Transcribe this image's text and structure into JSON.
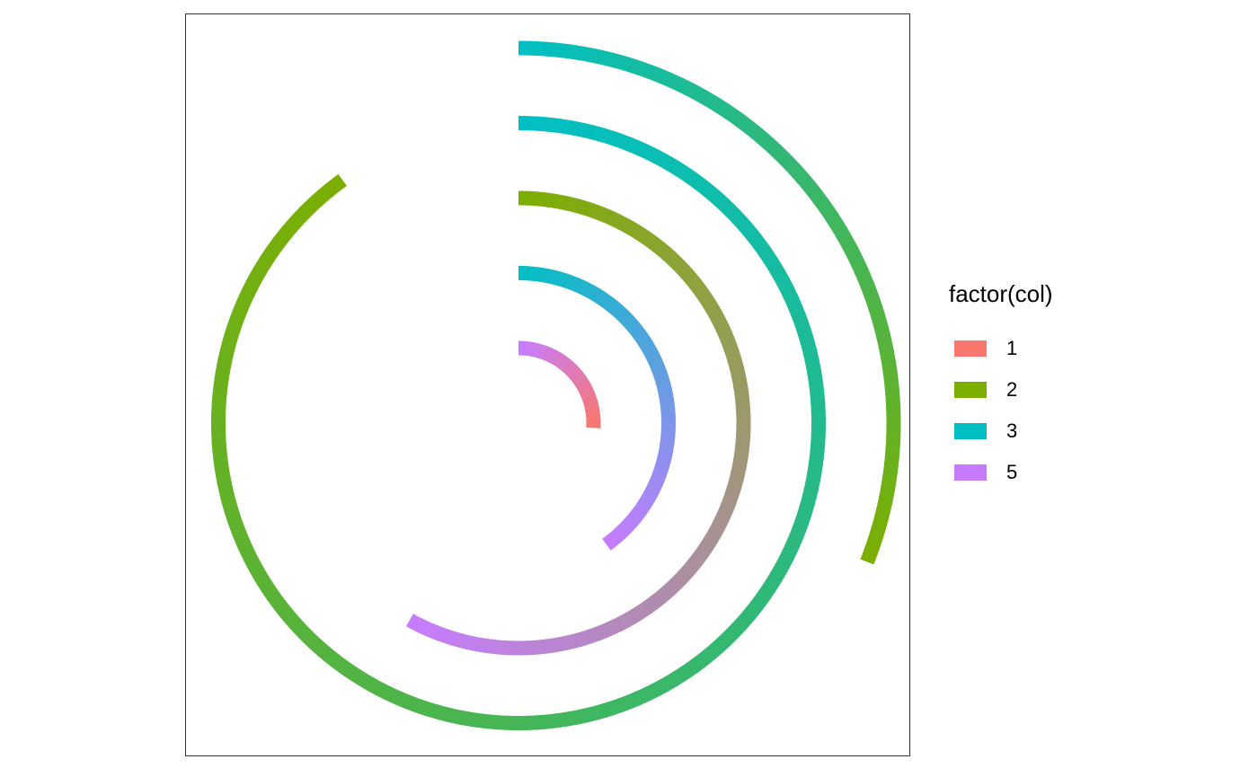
{
  "chart_data": {
    "type": "radial-arc",
    "coord": "polar",
    "legend": {
      "title": "factor(col)",
      "position": "right",
      "entries": [
        {
          "label": "1",
          "color": "#F8766D"
        },
        {
          "label": "2",
          "color": "#7CAE00"
        },
        {
          "label": "3",
          "color": "#00BFC4"
        },
        {
          "label": "5",
          "color": "#C77CFF"
        }
      ]
    },
    "grid": false,
    "arcs": [
      {
        "ring": 1,
        "start_frac": 0.0,
        "end_frac": 0.26,
        "color_start": "#C77CFF",
        "color_end": "#F8766D"
      },
      {
        "ring": 2,
        "start_frac": 0.0,
        "end_frac": 0.4,
        "color_start": "#00BFC4",
        "color_end": "#C77CFF"
      },
      {
        "ring": 3,
        "start_frac": 0.0,
        "end_frac": 0.58,
        "color_start": "#7CAE00",
        "color_end": "#C77CFF"
      },
      {
        "ring": 4,
        "start_frac": 0.0,
        "end_frac": 0.9,
        "color_start": "#00BFC4",
        "color_end": "#7CAE00"
      },
      {
        "ring": 5,
        "start_frac": 0.0,
        "end_frac": 0.31,
        "color_start": "#00BFC4",
        "color_end": "#7CAE00"
      }
    ]
  }
}
